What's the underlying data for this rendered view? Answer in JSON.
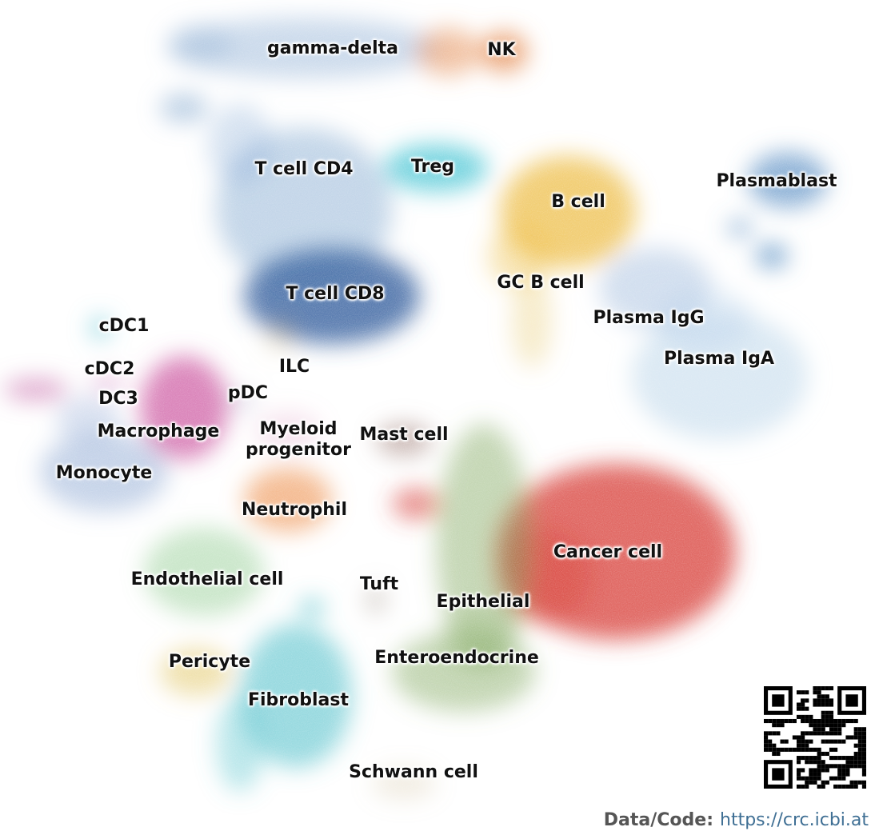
{
  "labels": [
    {
      "key": "gamma_delta",
      "text": "gamma-delta",
      "color": "#8fb0d4"
    },
    {
      "key": "nk",
      "text": "NK",
      "color": "#e7915a"
    },
    {
      "key": "t_cd4",
      "text": "T cell CD4",
      "color": "#7ca3cf"
    },
    {
      "key": "treg",
      "text": "Treg",
      "color": "#4cc7d6"
    },
    {
      "key": "b_cell",
      "text": "B cell",
      "color": "#edbd45"
    },
    {
      "key": "plasmablast",
      "text": "Plasmablast",
      "color": "#5f93c6"
    },
    {
      "key": "t_cd8",
      "text": "T cell CD8",
      "color": "#3f69a3"
    },
    {
      "key": "gc_b",
      "text": "GC B cell",
      "color": "#e8c96a"
    },
    {
      "key": "plasma_igg",
      "text": "Plasma IgG",
      "color": "#9bb9dc"
    },
    {
      "key": "plasma_iga",
      "text": "Plasma IgA",
      "color": "#b8d3ea"
    },
    {
      "key": "cdc1",
      "text": "cDC1",
      "color": "#69c9d6"
    },
    {
      "key": "cdc2",
      "text": "cDC2",
      "color": "#c96fae"
    },
    {
      "key": "dc3",
      "text": "DC3",
      "color": "#d483bd"
    },
    {
      "key": "ilc",
      "text": "ILC",
      "color": "#c9b070"
    },
    {
      "key": "pdc",
      "text": "pDC",
      "color": "#a9a0c8"
    },
    {
      "key": "macrophage",
      "text": "Macrophage",
      "color": "#cf5ea4"
    },
    {
      "key": "myeloid",
      "text": "Myeloid\nprogenitor",
      "color": "#e0a3c7"
    },
    {
      "key": "mast",
      "text": "Mast cell",
      "color": "#a88b84"
    },
    {
      "key": "monocyte",
      "text": "Monocyte",
      "color": "#8fa9d4"
    },
    {
      "key": "neutrophil",
      "text": "Neutrophil",
      "color": "#f1a066"
    },
    {
      "key": "cancer",
      "text": "Cancer cell",
      "color": "#d9453f"
    },
    {
      "key": "endothelial",
      "text": "Endothelial cell",
      "color": "#7cc27c"
    },
    {
      "key": "tuft",
      "text": "Tuft",
      "color": "#b0a49a"
    },
    {
      "key": "epithelial",
      "text": "Epithelial",
      "color": "#7fa65a"
    },
    {
      "key": "pericyte",
      "text": "Pericyte",
      "color": "#e2c45c"
    },
    {
      "key": "enteroendocrine",
      "text": "Enteroendocrine",
      "color": "#8fb070"
    },
    {
      "key": "fibroblast",
      "text": "Fibroblast",
      "color": "#56c2cc"
    },
    {
      "key": "schwann",
      "text": "Schwann cell",
      "color": "#cbb78a"
    }
  ],
  "footer": {
    "key": "Data/Code:",
    "url": "https://crc.icbi.at"
  },
  "qr_icon": "qr-code-icon"
}
